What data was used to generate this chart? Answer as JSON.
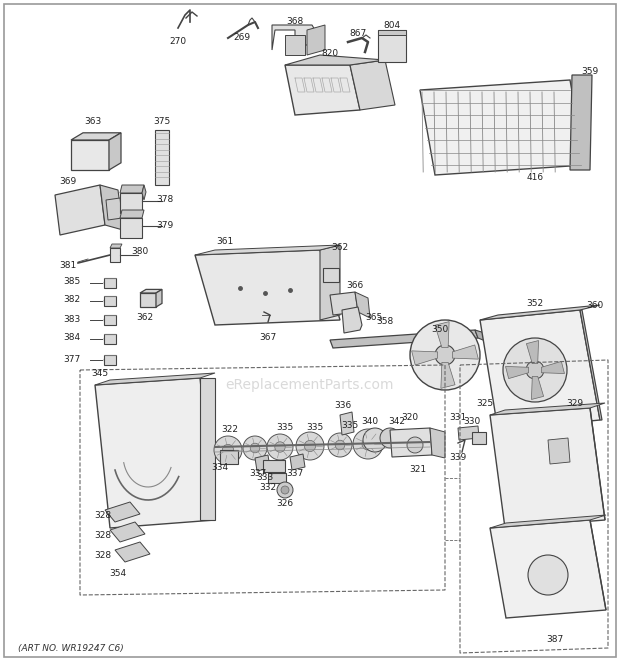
{
  "fig_width": 6.2,
  "fig_height": 6.61,
  "dpi": 100,
  "bg_color": "#ffffff",
  "art_no": "(ART NO. WR19247 C6)",
  "watermark": "eReplacementParts.com",
  "outer_border_color": "#999999",
  "outer_border_lw": 1.2,
  "label_fontsize": 6.5,
  "label_color": "#222222",
  "line_color": "#444444",
  "watermark_color": "#bbbbbb",
  "watermark_alpha": 0.55,
  "watermark_fontsize": 10
}
